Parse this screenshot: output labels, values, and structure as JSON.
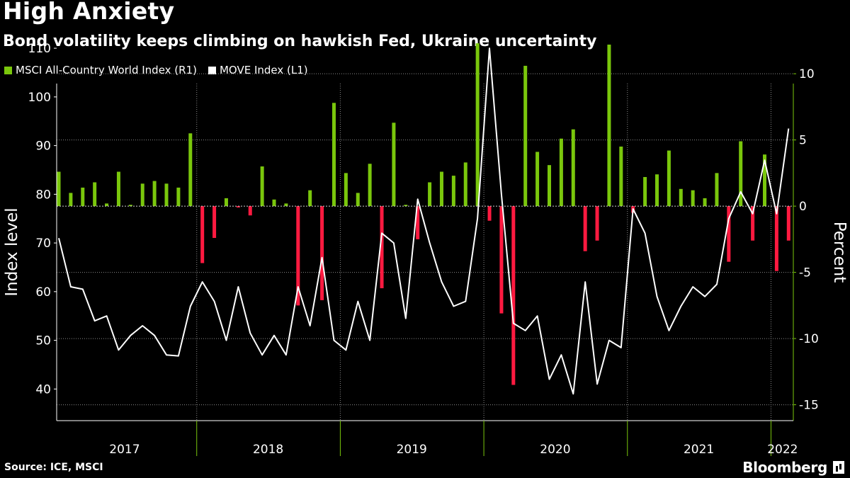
{
  "title": "High Anxiety",
  "subtitle": "Bond volatility keeps climbing on hawkish Fed, Ukraine uncertainty",
  "legend": [
    {
      "label": "MSCI All-Country World Index (R1)",
      "color": "#7ac70c"
    },
    {
      "label": "MOVE Index (L1)",
      "color": "#ffffff"
    }
  ],
  "source": "Source: ICE, MSCI",
  "brand": "Bloomberg",
  "chart_data": {
    "type": "bar+line",
    "left_axis": {
      "label": "Index level",
      "ticks": [
        40,
        50,
        60,
        70,
        80,
        90,
        100,
        110
      ],
      "range": [
        33.5,
        117
      ]
    },
    "right_axis": {
      "label": "Percent",
      "ticks": [
        -15,
        -10,
        -5,
        0,
        5,
        10
      ],
      "range": [
        -16.2,
        14.5
      ]
    },
    "x_labels": [
      "2017",
      "2018",
      "2019",
      "2020",
      "2021",
      "2022"
    ],
    "months": [
      "2017-01",
      "2017-02",
      "2017-03",
      "2017-04",
      "2017-05",
      "2017-06",
      "2017-07",
      "2017-08",
      "2017-09",
      "2017-10",
      "2017-11",
      "2017-12",
      "2018-01",
      "2018-02",
      "2018-03",
      "2018-04",
      "2018-05",
      "2018-06",
      "2018-07",
      "2018-08",
      "2018-09",
      "2018-10",
      "2018-11",
      "2018-12",
      "2019-01",
      "2019-02",
      "2019-03",
      "2019-04",
      "2019-05",
      "2019-06",
      "2019-07",
      "2019-08",
      "2019-09",
      "2019-10",
      "2019-11",
      "2019-12",
      "2020-01",
      "2020-02",
      "2020-03",
      "2020-04",
      "2020-05",
      "2020-06",
      "2020-07",
      "2020-08",
      "2020-09",
      "2020-10",
      "2020-11",
      "2020-12",
      "2021-01",
      "2021-02",
      "2021-03",
      "2021-04",
      "2021-05",
      "2021-06",
      "2021-07",
      "2021-08",
      "2021-09",
      "2021-10",
      "2021-11",
      "2021-12",
      "2022-01",
      "2022-02"
    ],
    "series": [
      {
        "name": "MSCI All-Country World Index (R1)",
        "kind": "bar",
        "axis": "right",
        "positive_color": "#7ac70c",
        "negative_color": "#ff1a40",
        "values": [
          2.6,
          1.0,
          1.4,
          1.8,
          0.2,
          2.6,
          0.1,
          1.7,
          1.9,
          1.7,
          1.4,
          5.5,
          -4.3,
          -2.4,
          0.6,
          -0.1,
          -0.7,
          3.0,
          0.5,
          0.2,
          -7.5,
          1.2,
          -7.1,
          7.8,
          2.5,
          1.0,
          3.2,
          -6.2,
          6.3,
          0.1,
          -2.5,
          1.8,
          2.6,
          2.3,
          3.3,
          12.3,
          -1.1,
          -8.1,
          -13.5,
          10.6,
          4.1,
          3.1,
          5.1,
          5.8,
          -3.4,
          -2.6,
          12.2,
          4.5,
          -0.5,
          2.2,
          2.4,
          4.2,
          1.3,
          1.2,
          0.6,
          2.5,
          -4.2,
          4.9,
          -2.6,
          3.9,
          -4.9,
          -2.6
        ]
      },
      {
        "name": "MOVE Index (L1)",
        "kind": "line",
        "axis": "left",
        "color": "#ffffff",
        "values": [
          71,
          61,
          60.5,
          54,
          55,
          48,
          51,
          53,
          51,
          47,
          46.8,
          57,
          62,
          58,
          50,
          61,
          51.5,
          47,
          51,
          47,
          61,
          53,
          67,
          50,
          48,
          58,
          50,
          72,
          70,
          54.5,
          79,
          70,
          62,
          57,
          58,
          75,
          110,
          80,
          53.5,
          52,
          55,
          42,
          47,
          39,
          62,
          41,
          50,
          48.5,
          77,
          72,
          59,
          52,
          57,
          61,
          59,
          61.5,
          75,
          80.5,
          76,
          87,
          76,
          93.5
        ]
      }
    ]
  }
}
